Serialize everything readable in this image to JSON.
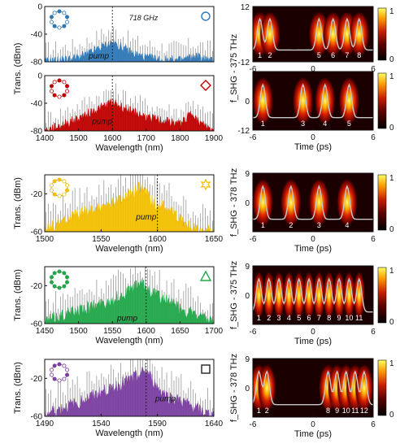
{
  "colors": {
    "blue": "#2e78b8",
    "red": "#c00000",
    "yellow": "#f2c000",
    "green": "#22a84a",
    "purple": "#7a3fa0",
    "gray": "#8a8a8a",
    "trace": "#c8c8c8"
  },
  "chart_data": [
    {
      "type": "line",
      "panel": "a-top",
      "color_key": "blue",
      "marker_icon": "circle-outline-icon",
      "xlim": [
        1400,
        1900
      ],
      "ylim": [
        -80,
        0
      ],
      "yticks": [
        0,
        -40,
        -80
      ],
      "xticks": [
        "1400",
        "1500",
        "1600",
        "1700",
        "1800",
        "1900"
      ],
      "annotations": [
        {
          "text": "718 GHz",
          "at_x": 1692,
          "at_y": -20
        },
        {
          "text": "pump",
          "at_x": 1560,
          "at_y": -75
        }
      ],
      "x": [
        1400,
        1450,
        1500,
        1540,
        1570,
        1600,
        1630,
        1660,
        1700,
        1750,
        1800,
        1850,
        1900
      ],
      "y": [
        -80,
        -78,
        -74,
        -66,
        -58,
        -52,
        -60,
        -68,
        -74,
        -77,
        -78,
        -72,
        -80
      ]
    },
    {
      "type": "line",
      "panel": "a-bottom",
      "color_key": "red",
      "marker_icon": "diamond-outline-icon",
      "xlabel": "Wavelength (nm)",
      "ylabel": "Trans. (dBm)",
      "xlim": [
        1400,
        1900
      ],
      "ylim": [
        -80,
        0
      ],
      "yticks": [
        0,
        -40,
        -80
      ],
      "xticks": [
        "1400",
        "1500",
        "1600",
        "1700",
        "1800",
        "1900"
      ],
      "annotations": [
        {
          "text": "pump",
          "at_x": 1570,
          "at_y": -70
        }
      ],
      "x": [
        1400,
        1450,
        1500,
        1540,
        1570,
        1600,
        1630,
        1660,
        1700,
        1750,
        1800,
        1840,
        1850,
        1900
      ],
      "y": [
        -80,
        -72,
        -62,
        -52,
        -46,
        -38,
        -46,
        -52,
        -60,
        -66,
        -70,
        -52,
        -66,
        -80
      ]
    },
    {
      "type": "line",
      "panel": "b",
      "color_key": "yellow",
      "marker_icon": "star-outline-icon",
      "xlabel": "Wavelength (nm)",
      "ylabel": "Trans. (dBm)",
      "xlim": [
        1500,
        1650
      ],
      "ylim": [
        -60,
        0
      ],
      "yticks": [
        -20,
        -60
      ],
      "xticks": [
        "1500",
        "1550",
        "1600",
        "1650"
      ],
      "annotations": [
        {
          "text": "pump",
          "at_x": 1590,
          "at_y": -47
        }
      ],
      "x": [
        1505,
        1520,
        1540,
        1560,
        1575,
        1585,
        1595,
        1610,
        1625,
        1640
      ],
      "y": [
        -55,
        -46,
        -38,
        -30,
        -22,
        -12,
        -28,
        -36,
        -52,
        -60
      ]
    },
    {
      "type": "line",
      "panel": "c",
      "color_key": "green",
      "marker_icon": "triangle-outline-icon",
      "xlabel": "Wavelength (nm)",
      "ylabel": "Trans. (dBm)",
      "xlim": [
        1450,
        1700
      ],
      "ylim": [
        -60,
        0
      ],
      "yticks": [
        -20,
        -60
      ],
      "xticks": [
        "1450",
        "1500",
        "1550",
        "1600",
        "1650",
        "1700"
      ],
      "annotations": [
        {
          "text": "pump",
          "at_x": 1572,
          "at_y": -57
        }
      ],
      "x": [
        1450,
        1480,
        1510,
        1540,
        1570,
        1590,
        1600,
        1620,
        1650,
        1680,
        1700
      ],
      "y": [
        -58,
        -50,
        -44,
        -38,
        -28,
        -18,
        -22,
        -32,
        -44,
        -54,
        -60
      ]
    },
    {
      "type": "line",
      "panel": "d",
      "color_key": "purple",
      "marker_icon": "square-outline-icon",
      "xlabel": "Wavelength (nm)",
      "ylabel": "Trans. (dBm)",
      "xlim": [
        1490,
        1640
      ],
      "ylim": [
        -60,
        0
      ],
      "yticks": [
        -20,
        -60
      ],
      "xticks": [
        "1490",
        "1540",
        "1590",
        "1640"
      ],
      "annotations": [
        {
          "text": "pump",
          "at_x": 1597,
          "at_y": -44
        }
      ],
      "x": [
        1490,
        1510,
        1530,
        1550,
        1565,
        1580,
        1590,
        1600,
        1615,
        1630,
        1640
      ],
      "y": [
        -58,
        -50,
        -40,
        -30,
        -22,
        -12,
        -30,
        -40,
        -46,
        -56,
        -60
      ]
    },
    {
      "type": "heatmap",
      "panel": "a-top-right",
      "xlim": [
        -6,
        6
      ],
      "ylim": [
        -12,
        12
      ],
      "yticks": [
        "12",
        "-12"
      ],
      "xticks": [
        "-6",
        "0",
        "6"
      ],
      "colorbar": [
        "0",
        "1"
      ],
      "soliton_labels": [
        "1",
        "2",
        "5",
        "6",
        "7",
        "8"
      ],
      "soliton_times": [
        -5.3,
        -4.3,
        0.6,
        2.0,
        3.4,
        4.6
      ]
    },
    {
      "type": "heatmap",
      "panel": "a-bottom-right",
      "xlabel": "Time (ps)",
      "ylabel": "f_SHG - 375 THz",
      "xlim": [
        -6,
        6
      ],
      "ylim": [
        -12,
        12
      ],
      "yticks": [
        "0",
        "-12"
      ],
      "xticks": [
        "-6",
        "0",
        "6"
      ],
      "colorbar": [
        "0",
        "1"
      ],
      "soliton_labels": [
        "1",
        "3",
        "4",
        "5"
      ],
      "soliton_times": [
        -5.0,
        -1.0,
        1.2,
        3.6
      ]
    },
    {
      "type": "heatmap",
      "panel": "b-right",
      "xlabel": "Time (ps)",
      "ylabel": "f_SHG - 378 THz",
      "xlim": [
        -6,
        6
      ],
      "ylim": [
        -9,
        9
      ],
      "yticks": [
        "9",
        "0"
      ],
      "xticks": [
        "-6",
        "0",
        "6"
      ],
      "colorbar": [
        "1",
        "0"
      ],
      "soliton_labels": [
        "1",
        "2",
        "3",
        "4"
      ],
      "soliton_times": [
        -5.0,
        -2.2,
        0.6,
        3.4
      ]
    },
    {
      "type": "heatmap",
      "panel": "c-right",
      "xlabel": "Time (ps)",
      "ylabel": "f_SHG - 375 THz",
      "xlim": [
        -6,
        6
      ],
      "ylim": [
        -9,
        9
      ],
      "yticks": [
        "9",
        "0"
      ],
      "xticks": [
        "-6",
        "0",
        "6"
      ],
      "colorbar": [
        "1",
        "0"
      ],
      "soliton_labels": [
        "1",
        "2",
        "3",
        "4",
        "5",
        "6",
        "7",
        "8",
        "9",
        "10",
        "11"
      ],
      "soliton_times": [
        -5.4,
        -4.4,
        -3.4,
        -2.4,
        -1.4,
        -0.4,
        0.6,
        1.6,
        2.6,
        3.6,
        4.6
      ]
    },
    {
      "type": "heatmap",
      "panel": "d-right",
      "xlabel": "Time (ps)",
      "ylabel": "f_SHG - 378 THz",
      "xlim": [
        -6,
        6
      ],
      "ylim": [
        -9,
        9
      ],
      "yticks": [
        "9",
        "0"
      ],
      "xticks": [
        "-6",
        "0",
        "6"
      ],
      "colorbar": [
        "1",
        "0"
      ],
      "soliton_labels": [
        "1",
        "2",
        "8",
        "9",
        "10",
        "11",
        "12"
      ],
      "soliton_times": [
        -5.4,
        -4.6,
        1.5,
        2.4,
        3.3,
        4.2,
        5.1
      ]
    }
  ]
}
